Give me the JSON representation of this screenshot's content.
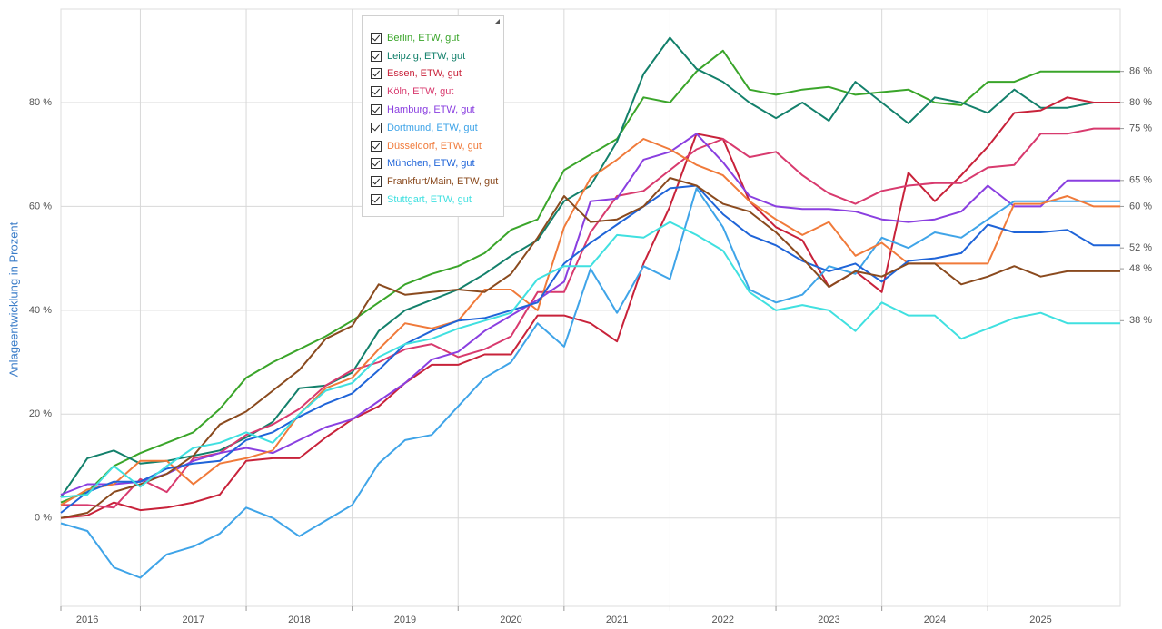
{
  "chart_data": {
    "type": "line",
    "y_label": "Anlageentwicklung  in Prozent",
    "x": [
      2016.25,
      2016.5,
      2016.75,
      2017,
      2017.25,
      2017.5,
      2017.75,
      2018,
      2018.25,
      2018.5,
      2018.75,
      2019,
      2019.25,
      2019.5,
      2019.75,
      2020,
      2020.25,
      2020.5,
      2020.75,
      2021,
      2021.25,
      2021.5,
      2021.75,
      2022,
      2022.25,
      2022.5,
      2022.75,
      2023,
      2023.25,
      2023.5,
      2023.75,
      2024,
      2024.25,
      2024.5,
      2024.75,
      2025,
      2025.25,
      2025.5,
      2025.75,
      2026,
      2026.25
    ],
    "xlim": [
      2016.25,
      2026.25
    ],
    "xticks": [
      {
        "value": 2016,
        "label": "2016"
      },
      {
        "value": 2017,
        "label": "2017"
      },
      {
        "value": 2018,
        "label": "2018"
      },
      {
        "value": 2019,
        "label": "2019"
      },
      {
        "value": 2020,
        "label": "2020"
      },
      {
        "value": 2021,
        "label": "2021"
      },
      {
        "value": 2022,
        "label": "2022"
      },
      {
        "value": 2023,
        "label": "2023"
      },
      {
        "value": 2024,
        "label": "2024"
      },
      {
        "value": 2025,
        "label": "2025"
      }
    ],
    "ylim": [
      -17,
      98
    ],
    "yticks": [
      {
        "value": 0,
        "label": "0 %"
      },
      {
        "value": 20,
        "label": "20 %"
      },
      {
        "value": 40,
        "label": "40 %"
      },
      {
        "value": 60,
        "label": "60 %"
      },
      {
        "value": 80,
        "label": "80 %"
      }
    ],
    "y2lim": [
      -17,
      98
    ],
    "y2ticks": [
      {
        "value": 86,
        "label": "86 %"
      },
      {
        "value": 80,
        "label": "80 %"
      },
      {
        "value": 75,
        "label": "75 %"
      },
      {
        "value": 65,
        "label": "65 %"
      },
      {
        "value": 60,
        "label": "60 %"
      },
      {
        "value": 52,
        "label": "52 %"
      },
      {
        "value": 48,
        "label": "48 %"
      },
      {
        "value": 38,
        "label": "38 %"
      }
    ],
    "grid": true,
    "series": [
      {
        "name": "Berlin, ETW, gut",
        "color": "#3aa52a",
        "values": [
          3,
          5,
          10,
          12.5,
          14.5,
          16.5,
          21,
          27,
          30,
          32.5,
          35,
          38,
          41.5,
          45,
          47,
          48.5,
          51,
          55.5,
          57.5,
          67,
          70,
          73,
          81,
          80,
          86,
          90,
          82.5,
          81.5,
          82.5,
          83,
          81.5,
          82,
          82.5,
          80,
          79.5,
          84,
          84,
          86,
          86,
          86,
          86
        ]
      },
      {
        "name": "Leipzig, ETW, gut",
        "color": "#13806b",
        "values": [
          4,
          11.5,
          13,
          10.5,
          11,
          12,
          13,
          15.5,
          18.5,
          25,
          25.5,
          28,
          36,
          40,
          42,
          44,
          47,
          50.5,
          53.5,
          61,
          64,
          72.5,
          85.5,
          92.5,
          86.5,
          84,
          80,
          77,
          80,
          76.5,
          84,
          80,
          76,
          81,
          80,
          78,
          82.5,
          79,
          79,
          80,
          80
        ]
      },
      {
        "name": "Essen, ETW, gut",
        "color": "#c8223a",
        "values": [
          0,
          0.5,
          3,
          1.5,
          2,
          3,
          4.5,
          11,
          11.5,
          11.5,
          15.5,
          19,
          21.5,
          26,
          29.5,
          29.5,
          31.5,
          31.5,
          39,
          39,
          37.5,
          34,
          49,
          60,
          74,
          73,
          61,
          56,
          53.5,
          44.5,
          47.5,
          43.5,
          66.5,
          61,
          66,
          71.5,
          78,
          78.5,
          81,
          80,
          80
        ]
      },
      {
        "name": "Köln, ETW, gut",
        "color": "#d83a6e",
        "values": [
          2.5,
          2.5,
          2,
          7.5,
          5,
          11.5,
          12.5,
          16,
          18,
          21,
          25.5,
          28.5,
          30,
          32.5,
          33.5,
          31,
          32.5,
          35,
          43.5,
          43.5,
          55,
          62,
          63,
          67,
          71,
          73,
          69.5,
          70.5,
          66,
          62.5,
          60.5,
          63,
          64,
          64.5,
          64.5,
          67.5,
          68,
          74,
          74,
          75,
          75
        ]
      },
      {
        "name": "Hamburg, ETW, gut",
        "color": "#8a3fe0",
        "values": [
          4.5,
          6.5,
          6.5,
          7,
          8.5,
          11,
          12.5,
          13.5,
          12.5,
          15,
          17.5,
          19,
          22.5,
          26,
          30.5,
          32,
          36,
          39,
          42,
          45.5,
          61,
          61.5,
          69,
          70.5,
          74,
          68.5,
          62,
          60,
          59.5,
          59.5,
          59,
          57.5,
          57,
          57.5,
          59,
          64,
          60,
          60,
          65,
          65,
          65
        ]
      },
      {
        "name": "Dortmund, ETW, gut",
        "color": "#3fa4e8",
        "values": [
          -1,
          -2.5,
          -9.5,
          -11.5,
          -7,
          -5.5,
          -3,
          2,
          0,
          -3.5,
          -0.5,
          2.5,
          10.5,
          15,
          16,
          21.5,
          27,
          30,
          37.5,
          33,
          48,
          39.5,
          48.5,
          46,
          63.5,
          56,
          44,
          41.5,
          43,
          48.5,
          47,
          54,
          52,
          55,
          54,
          57.5,
          61,
          61,
          61,
          61,
          61
        ]
      },
      {
        "name": "Düsseldorf, ETW, gut",
        "color": "#f07a3a",
        "values": [
          2.5,
          5.5,
          6.5,
          11,
          11,
          6.5,
          10.5,
          11.5,
          13,
          20,
          25,
          27,
          32.5,
          37.5,
          36.5,
          38,
          44,
          44,
          40,
          56,
          65.5,
          69,
          73,
          71,
          68,
          66,
          61,
          57.5,
          54.5,
          57,
          50.5,
          53,
          49,
          49,
          49,
          49,
          60.5,
          60.5,
          62,
          60,
          60
        ]
      },
      {
        "name": "München, ETW, gut",
        "color": "#1f64d8",
        "values": [
          1,
          5,
          7,
          7,
          9.5,
          10.5,
          11,
          15,
          16.5,
          19.5,
          22,
          24,
          28.5,
          33.5,
          36,
          38,
          38.5,
          40,
          41.5,
          49,
          53,
          56.5,
          60,
          63.5,
          64,
          58.5,
          54.5,
          52.5,
          49.5,
          47.5,
          49,
          45.5,
          49.5,
          50,
          51,
          56.5,
          55,
          55,
          55.5,
          52.5,
          52.5
        ]
      },
      {
        "name": "Frankfurt/Main, ETW, gut",
        "color": "#8a4a1e",
        "values": [
          0,
          1,
          5,
          6.5,
          8.5,
          12,
          18,
          20.5,
          24.5,
          28.5,
          34.5,
          37,
          45,
          43,
          43.5,
          44,
          43.5,
          47,
          54,
          62,
          57,
          57.5,
          60,
          65.5,
          64,
          60.5,
          59,
          55,
          50,
          44.5,
          47.5,
          46.5,
          49,
          49,
          45,
          46.5,
          48.5,
          46.5,
          47.5,
          47.5,
          47.5
        ]
      },
      {
        "name": "Stuttgart, ETW, gut",
        "color": "#40e0e0",
        "values": [
          4,
          4.5,
          10,
          6,
          10,
          13.5,
          14.5,
          16.5,
          14.5,
          20,
          24.5,
          26,
          31,
          33.5,
          34.5,
          36.5,
          38,
          39.5,
          46,
          48.5,
          48.5,
          54.5,
          54,
          57,
          54.5,
          51.5,
          43.5,
          40,
          41,
          40,
          36,
          41.5,
          39,
          39,
          34.5,
          36.5,
          38.5,
          39.5,
          37.5,
          37.5,
          37.5
        ]
      }
    ]
  }
}
